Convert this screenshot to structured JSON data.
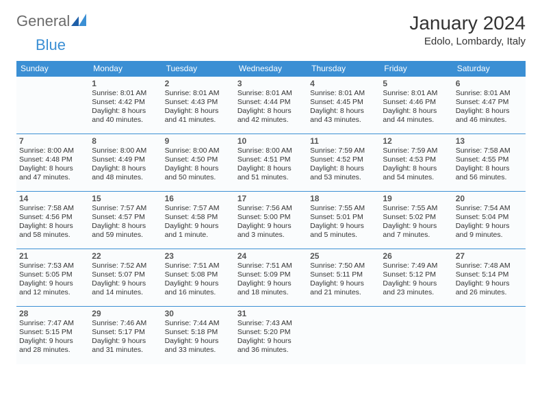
{
  "brand": {
    "part1": "General",
    "part2": "Blue"
  },
  "title": "January 2024",
  "location": "Edolo, Lombardy, Italy",
  "colors": {
    "header_bg": "#3b8fd4",
    "header_text": "#ffffff",
    "cell_border": "#3b8fd4",
    "cell_bg": "#fafcfd",
    "text": "#333333",
    "logo_gray": "#6b6b6b",
    "logo_blue": "#3b8fd4"
  },
  "typography": {
    "title_fontsize": 28,
    "location_fontsize": 15,
    "header_fontsize": 12,
    "daynum_fontsize": 12,
    "body_fontsize": 10.5
  },
  "layout": {
    "columns": 7,
    "rows": 5,
    "first_weekday_index": 1
  },
  "days_of_week": [
    "Sunday",
    "Monday",
    "Tuesday",
    "Wednesday",
    "Thursday",
    "Friday",
    "Saturday"
  ],
  "cells": [
    {
      "day": "",
      "sunrise": "",
      "sunset": "",
      "daylight1": "",
      "daylight2": ""
    },
    {
      "day": "1",
      "sunrise": "Sunrise: 8:01 AM",
      "sunset": "Sunset: 4:42 PM",
      "daylight1": "Daylight: 8 hours",
      "daylight2": "and 40 minutes."
    },
    {
      "day": "2",
      "sunrise": "Sunrise: 8:01 AM",
      "sunset": "Sunset: 4:43 PM",
      "daylight1": "Daylight: 8 hours",
      "daylight2": "and 41 minutes."
    },
    {
      "day": "3",
      "sunrise": "Sunrise: 8:01 AM",
      "sunset": "Sunset: 4:44 PM",
      "daylight1": "Daylight: 8 hours",
      "daylight2": "and 42 minutes."
    },
    {
      "day": "4",
      "sunrise": "Sunrise: 8:01 AM",
      "sunset": "Sunset: 4:45 PM",
      "daylight1": "Daylight: 8 hours",
      "daylight2": "and 43 minutes."
    },
    {
      "day": "5",
      "sunrise": "Sunrise: 8:01 AM",
      "sunset": "Sunset: 4:46 PM",
      "daylight1": "Daylight: 8 hours",
      "daylight2": "and 44 minutes."
    },
    {
      "day": "6",
      "sunrise": "Sunrise: 8:01 AM",
      "sunset": "Sunset: 4:47 PM",
      "daylight1": "Daylight: 8 hours",
      "daylight2": "and 46 minutes."
    },
    {
      "day": "7",
      "sunrise": "Sunrise: 8:00 AM",
      "sunset": "Sunset: 4:48 PM",
      "daylight1": "Daylight: 8 hours",
      "daylight2": "and 47 minutes."
    },
    {
      "day": "8",
      "sunrise": "Sunrise: 8:00 AM",
      "sunset": "Sunset: 4:49 PM",
      "daylight1": "Daylight: 8 hours",
      "daylight2": "and 48 minutes."
    },
    {
      "day": "9",
      "sunrise": "Sunrise: 8:00 AM",
      "sunset": "Sunset: 4:50 PM",
      "daylight1": "Daylight: 8 hours",
      "daylight2": "and 50 minutes."
    },
    {
      "day": "10",
      "sunrise": "Sunrise: 8:00 AM",
      "sunset": "Sunset: 4:51 PM",
      "daylight1": "Daylight: 8 hours",
      "daylight2": "and 51 minutes."
    },
    {
      "day": "11",
      "sunrise": "Sunrise: 7:59 AM",
      "sunset": "Sunset: 4:52 PM",
      "daylight1": "Daylight: 8 hours",
      "daylight2": "and 53 minutes."
    },
    {
      "day": "12",
      "sunrise": "Sunrise: 7:59 AM",
      "sunset": "Sunset: 4:53 PM",
      "daylight1": "Daylight: 8 hours",
      "daylight2": "and 54 minutes."
    },
    {
      "day": "13",
      "sunrise": "Sunrise: 7:58 AM",
      "sunset": "Sunset: 4:55 PM",
      "daylight1": "Daylight: 8 hours",
      "daylight2": "and 56 minutes."
    },
    {
      "day": "14",
      "sunrise": "Sunrise: 7:58 AM",
      "sunset": "Sunset: 4:56 PM",
      "daylight1": "Daylight: 8 hours",
      "daylight2": "and 58 minutes."
    },
    {
      "day": "15",
      "sunrise": "Sunrise: 7:57 AM",
      "sunset": "Sunset: 4:57 PM",
      "daylight1": "Daylight: 8 hours",
      "daylight2": "and 59 minutes."
    },
    {
      "day": "16",
      "sunrise": "Sunrise: 7:57 AM",
      "sunset": "Sunset: 4:58 PM",
      "daylight1": "Daylight: 9 hours",
      "daylight2": "and 1 minute."
    },
    {
      "day": "17",
      "sunrise": "Sunrise: 7:56 AM",
      "sunset": "Sunset: 5:00 PM",
      "daylight1": "Daylight: 9 hours",
      "daylight2": "and 3 minutes."
    },
    {
      "day": "18",
      "sunrise": "Sunrise: 7:55 AM",
      "sunset": "Sunset: 5:01 PM",
      "daylight1": "Daylight: 9 hours",
      "daylight2": "and 5 minutes."
    },
    {
      "day": "19",
      "sunrise": "Sunrise: 7:55 AM",
      "sunset": "Sunset: 5:02 PM",
      "daylight1": "Daylight: 9 hours",
      "daylight2": "and 7 minutes."
    },
    {
      "day": "20",
      "sunrise": "Sunrise: 7:54 AM",
      "sunset": "Sunset: 5:04 PM",
      "daylight1": "Daylight: 9 hours",
      "daylight2": "and 9 minutes."
    },
    {
      "day": "21",
      "sunrise": "Sunrise: 7:53 AM",
      "sunset": "Sunset: 5:05 PM",
      "daylight1": "Daylight: 9 hours",
      "daylight2": "and 12 minutes."
    },
    {
      "day": "22",
      "sunrise": "Sunrise: 7:52 AM",
      "sunset": "Sunset: 5:07 PM",
      "daylight1": "Daylight: 9 hours",
      "daylight2": "and 14 minutes."
    },
    {
      "day": "23",
      "sunrise": "Sunrise: 7:51 AM",
      "sunset": "Sunset: 5:08 PM",
      "daylight1": "Daylight: 9 hours",
      "daylight2": "and 16 minutes."
    },
    {
      "day": "24",
      "sunrise": "Sunrise: 7:51 AM",
      "sunset": "Sunset: 5:09 PM",
      "daylight1": "Daylight: 9 hours",
      "daylight2": "and 18 minutes."
    },
    {
      "day": "25",
      "sunrise": "Sunrise: 7:50 AM",
      "sunset": "Sunset: 5:11 PM",
      "daylight1": "Daylight: 9 hours",
      "daylight2": "and 21 minutes."
    },
    {
      "day": "26",
      "sunrise": "Sunrise: 7:49 AM",
      "sunset": "Sunset: 5:12 PM",
      "daylight1": "Daylight: 9 hours",
      "daylight2": "and 23 minutes."
    },
    {
      "day": "27",
      "sunrise": "Sunrise: 7:48 AM",
      "sunset": "Sunset: 5:14 PM",
      "daylight1": "Daylight: 9 hours",
      "daylight2": "and 26 minutes."
    },
    {
      "day": "28",
      "sunrise": "Sunrise: 7:47 AM",
      "sunset": "Sunset: 5:15 PM",
      "daylight1": "Daylight: 9 hours",
      "daylight2": "and 28 minutes."
    },
    {
      "day": "29",
      "sunrise": "Sunrise: 7:46 AM",
      "sunset": "Sunset: 5:17 PM",
      "daylight1": "Daylight: 9 hours",
      "daylight2": "and 31 minutes."
    },
    {
      "day": "30",
      "sunrise": "Sunrise: 7:44 AM",
      "sunset": "Sunset: 5:18 PM",
      "daylight1": "Daylight: 9 hours",
      "daylight2": "and 33 minutes."
    },
    {
      "day": "31",
      "sunrise": "Sunrise: 7:43 AM",
      "sunset": "Sunset: 5:20 PM",
      "daylight1": "Daylight: 9 hours",
      "daylight2": "and 36 minutes."
    },
    {
      "day": "",
      "sunrise": "",
      "sunset": "",
      "daylight1": "",
      "daylight2": ""
    },
    {
      "day": "",
      "sunrise": "",
      "sunset": "",
      "daylight1": "",
      "daylight2": ""
    },
    {
      "day": "",
      "sunrise": "",
      "sunset": "",
      "daylight1": "",
      "daylight2": ""
    }
  ]
}
